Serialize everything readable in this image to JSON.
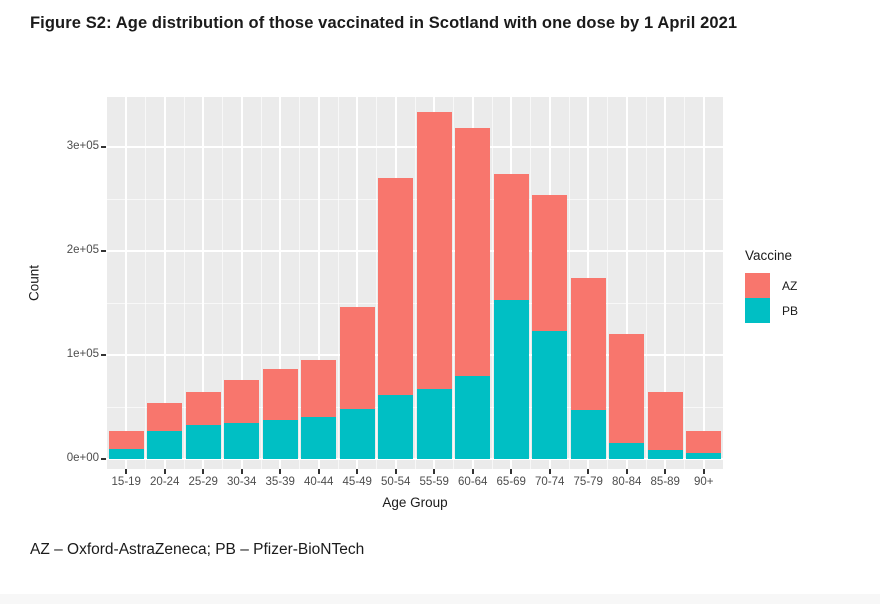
{
  "title": "Figure S2: Age distribution of those vaccinated in Scotland with one dose by 1 April 2021",
  "footnote": "AZ – Oxford-AstraZeneca; PB – Pfizer-BioNTech",
  "chart_data": {
    "type": "bar",
    "stacked": true,
    "title": "",
    "categories": [
      "15-19",
      "20-24",
      "25-29",
      "30-34",
      "35-39",
      "40-44",
      "45-49",
      "50-54",
      "55-59",
      "60-64",
      "65-69",
      "70-74",
      "75-79",
      "80-84",
      "85-89",
      "90+"
    ],
    "series": [
      {
        "name": "AZ",
        "color": "#F8766D",
        "values": [
          16500,
          27500,
          31500,
          41500,
          49500,
          55500,
          97500,
          208000,
          267000,
          238000,
          121500,
          130500,
          126500,
          105000,
          55500,
          21000
        ]
      },
      {
        "name": "PB",
        "color": "#00BFC4",
        "values": [
          10000,
          26500,
          33000,
          34500,
          37500,
          40000,
          48500,
          62000,
          67000,
          80000,
          152500,
          123500,
          47500,
          15000,
          9000,
          6000
        ]
      }
    ],
    "stack_order_bottom_to_top": [
      "PB",
      "AZ"
    ],
    "totals": [
      26500,
      54000,
      64500,
      76000,
      87000,
      95500,
      146000,
      270000,
      334000,
      318000,
      274000,
      254000,
      174000,
      120000,
      64500,
      27000
    ],
    "xlabel": "Age Group",
    "ylabel": "Count",
    "ytick_labels": [
      "0e+00",
      "1e+05",
      "2e+05",
      "3e+05"
    ],
    "ytick_values": [
      0,
      100000,
      200000,
      300000
    ],
    "ylim": [
      0,
      348000
    ],
    "grid": true,
    "legend_title": "Vaccine",
    "legend_position": "right",
    "panel_bg": "#EBEBEB",
    "grid_color": "#FFFFFF"
  }
}
